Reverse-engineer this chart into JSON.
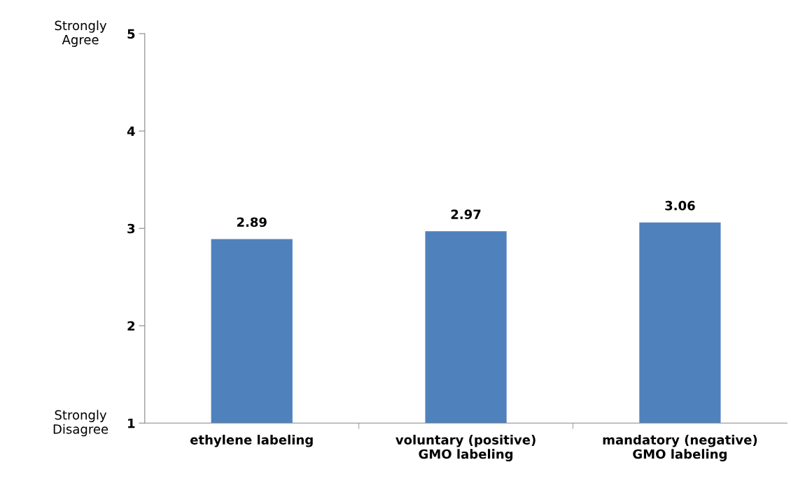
{
  "chart_data": {
    "type": "bar",
    "categories": [
      "ethylene labeling",
      "voluntary (positive)\nGMO labeling",
      "mandatory (negative)\nGMO labeling"
    ],
    "values": [
      2.89,
      2.97,
      3.06
    ],
    "color": "#4f81bd",
    "ylim": [
      1,
      5
    ],
    "yticks": [
      1,
      2,
      3,
      4,
      5
    ],
    "data_labels": true,
    "grid": false,
    "annotations": [
      "Strongly\nAgree",
      "Strongly\nDisagree"
    ]
  }
}
